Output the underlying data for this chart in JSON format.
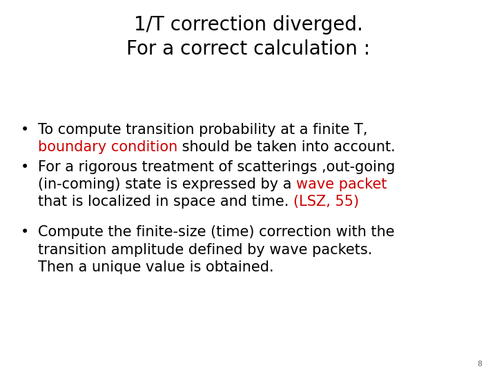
{
  "title_line1": "1/T correction diverged.",
  "title_line2": "For a correct calculation :",
  "title_fontsize": 20,
  "title_color": "#000000",
  "background_color": "#ffffff",
  "slide_number": "8",
  "bullet_fontsize": 15,
  "bullet_color": "#000000",
  "red_color": "#cc0000",
  "bullet_char": "•"
}
